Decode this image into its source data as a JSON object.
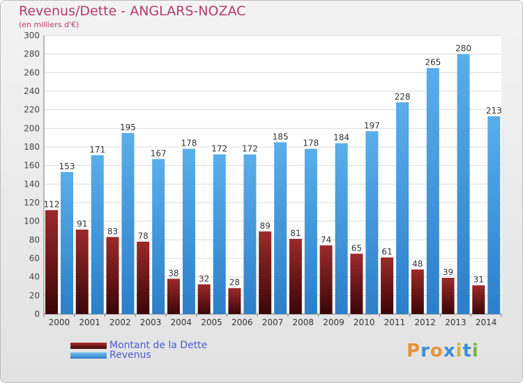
{
  "chart_data": {
    "type": "bar",
    "title": "Revenus/Dette - ANGLARS-NOZAC",
    "subtitle": "(en milliers d'€)",
    "categories": [
      "2000",
      "2001",
      "2002",
      "2003",
      "2004",
      "2005",
      "2006",
      "2007",
      "2008",
      "2009",
      "2010",
      "2011",
      "2012",
      "2013",
      "2014"
    ],
    "series": [
      {
        "name": "Montant de la Dette",
        "color": "#8b1e1e",
        "values": [
          112,
          91,
          83,
          78,
          38,
          32,
          28,
          89,
          81,
          74,
          65,
          61,
          48,
          39,
          31
        ]
      },
      {
        "name": "Revenus",
        "color": "#4a9fe0",
        "values": [
          153,
          171,
          195,
          167,
          178,
          172,
          172,
          185,
          178,
          184,
          197,
          228,
          265,
          280,
          213
        ]
      }
    ],
    "ylim": [
      0,
      300
    ],
    "yticks": [
      0,
      20,
      40,
      60,
      80,
      100,
      120,
      140,
      160,
      180,
      200,
      220,
      240,
      260,
      280,
      300
    ],
    "grid": true,
    "legend": "bottom-left"
  },
  "branding": {
    "logo_letters": [
      "P",
      "r",
      "o",
      "x",
      "i",
      "t",
      "i"
    ],
    "logo_colors": [
      "#e8923a",
      "#3b8fd6",
      "#e8923a",
      "#3b8fd6",
      "#d4b23a",
      "#3b8fd6",
      "#7ab83a"
    ]
  }
}
